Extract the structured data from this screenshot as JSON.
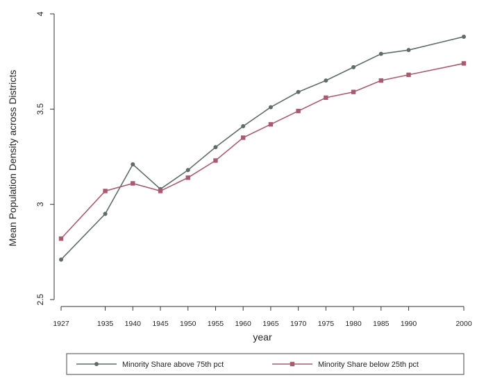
{
  "chart_data": {
    "type": "line",
    "title": "",
    "xlabel": "year",
    "ylabel": "Mean Population Density across Districts",
    "x": [
      1927,
      1935,
      1940,
      1945,
      1950,
      1955,
      1960,
      1965,
      1970,
      1975,
      1980,
      1985,
      1990,
      2000
    ],
    "x_tick_labels": [
      "1927",
      "1935",
      "1940",
      "1945",
      "1950",
      "1955",
      "1960",
      "1965",
      "1970",
      "1975",
      "1980",
      "1985",
      "1990",
      "2000"
    ],
    "y_ticks": [
      2.5,
      3,
      3.5,
      4
    ],
    "y_tick_labels": [
      "2.5",
      "3",
      "3.5",
      "4"
    ],
    "xlim": [
      1927,
      2000
    ],
    "ylim": [
      2.5,
      4
    ],
    "grid": false,
    "legend_position": "bottom",
    "series": [
      {
        "name": "Minority Share above 75th pct",
        "color": "#5e6e66",
        "marker": "circle",
        "values": [
          2.71,
          2.95,
          3.21,
          3.08,
          3.18,
          3.3,
          3.41,
          3.51,
          3.59,
          3.65,
          3.72,
          3.79,
          3.81,
          3.88
        ]
      },
      {
        "name": "Minority Share below 25th pct",
        "color": "#a85a6e",
        "marker": "square",
        "values": [
          2.82,
          3.07,
          3.11,
          3.07,
          3.14,
          3.23,
          3.35,
          3.42,
          3.49,
          3.56,
          3.59,
          3.65,
          3.68,
          3.74
        ]
      }
    ]
  }
}
